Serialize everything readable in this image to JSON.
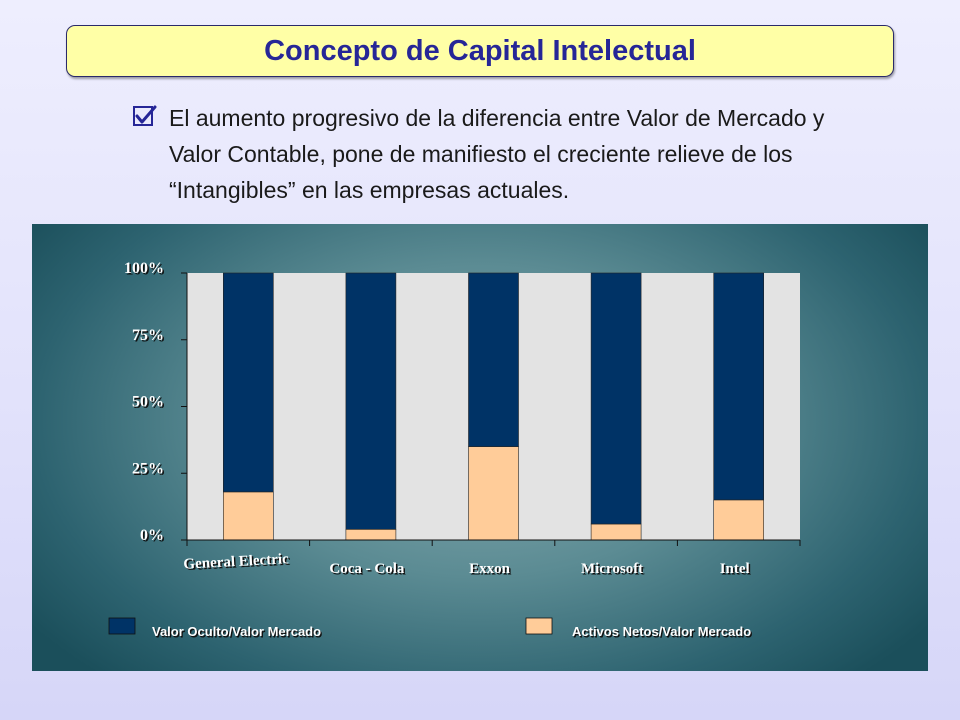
{
  "header": {
    "title": "Concepto de Capital Intelectual"
  },
  "bullet": {
    "icon": "checkbox-checked-icon",
    "text": "El aumento progresivo de la diferencia entre Valor de Mercado y Valor Contable, pone de manifiesto el creciente relieve de los “Intangibles” en las empresas actuales."
  },
  "chart_data": {
    "type": "bar",
    "stacked": true,
    "categories": [
      "General Electric",
      "Coca - Cola",
      "Exxon",
      "Microsoft",
      "Intel"
    ],
    "series": [
      {
        "name": "Activos Netos/Valor Mercado",
        "values": [
          18,
          4,
          35,
          6,
          15
        ],
        "color": "#ffcc99"
      },
      {
        "name": "Valor Oculto/Valor Mercado",
        "values": [
          82,
          96,
          65,
          94,
          85
        ],
        "color": "#003366"
      }
    ],
    "y_ticks": [
      "0%",
      "25%",
      "50%",
      "75%",
      "100%"
    ],
    "ylim": [
      0,
      100
    ],
    "legend": [
      {
        "label": "Valor Oculto/Valor Mercado",
        "color": "#003366"
      },
      {
        "label": "Activos Netos/Valor Mercado",
        "color": "#ffcc99"
      }
    ],
    "legend_position": "bottom",
    "plot_background": "#e3e3e3"
  }
}
